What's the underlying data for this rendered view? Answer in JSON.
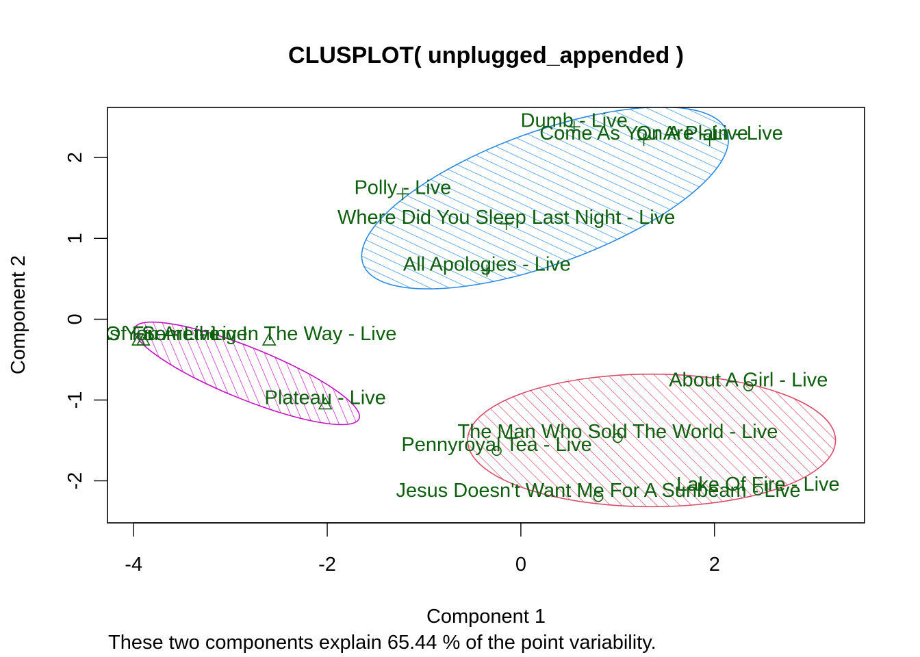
{
  "chart_data": {
    "type": "scatter",
    "title": "CLUSPLOT( unplugged_appended )",
    "xlabel": "Component 1",
    "ylabel": "Component 2",
    "subtitle": "These two components explain 65.44 % of the point variability.",
    "xlim": [
      -4.27,
      3.55
    ],
    "ylim": [
      -2.52,
      2.62
    ],
    "xticks": [
      -4,
      -2,
      0,
      2
    ],
    "yticks": [
      -2,
      -1,
      0,
      1,
      2
    ],
    "grid": false,
    "label_color": "#0d5f0d",
    "clusters": [
      {
        "id": 1,
        "symbol": "plus",
        "color": "#2b8ae0",
        "ellipse": {
          "center": [
            0.25,
            1.5
          ],
          "semi_axes": [
            2.0,
            0.82
          ],
          "angle_deg": 20
        },
        "points": [
          {
            "label": "Dumb - Live",
            "x": 0.55,
            "y": 2.38
          },
          {
            "label": "Come As You Are - Live",
            "x": 1.27,
            "y": 2.22
          },
          {
            "label": "On A Plain - Live",
            "x": 1.95,
            "y": 2.22
          },
          {
            "label": "Polly - Live",
            "x": -1.22,
            "y": 1.55
          },
          {
            "label": "Where Did You Sleep Last Night - Live",
            "x": -0.15,
            "y": 1.18
          },
          {
            "label": "All Apologies - Live",
            "x": -0.35,
            "y": 0.6
          }
        ]
      },
      {
        "id": 2,
        "symbol": "circle",
        "color": "#d84b68",
        "ellipse": {
          "center": [
            1.35,
            -1.5
          ],
          "semi_axes": [
            1.9,
            0.82
          ],
          "angle_deg": 0
        },
        "points": [
          {
            "label": "About A Girl - Live",
            "x": 2.35,
            "y": -0.83
          },
          {
            "label": "The Man Who Sold The World - Live",
            "x": 1.0,
            "y": -1.47
          },
          {
            "label": "Pennyroyal Tea - Live",
            "x": -0.25,
            "y": -1.63
          },
          {
            "label": "Jesus Doesn't Want Me For A Sunbeam - Live",
            "x": 0.8,
            "y": -2.2
          },
          {
            "label": "Lake Of Fire - Live",
            "x": 2.45,
            "y": -2.12
          }
        ]
      },
      {
        "id": 3,
        "symbol": "triangle",
        "color": "#c010c0",
        "ellipse": {
          "center": [
            -2.83,
            -0.67
          ],
          "semi_axes": [
            1.25,
            0.32
          ],
          "angle_deg": -22
        },
        "points": [
          {
            "label": "Something In The Way - Live",
            "x": -2.6,
            "y": -0.26
          },
          {
            "label": "Plateau - Live",
            "x": -2.02,
            "y": -1.05
          },
          {
            "label": "Come As You Are - Live",
            "x": -3.9,
            "y": -0.26
          },
          {
            "label": "Lake Of Fire - Live",
            "x": -3.95,
            "y": -0.26
          }
        ]
      }
    ]
  }
}
